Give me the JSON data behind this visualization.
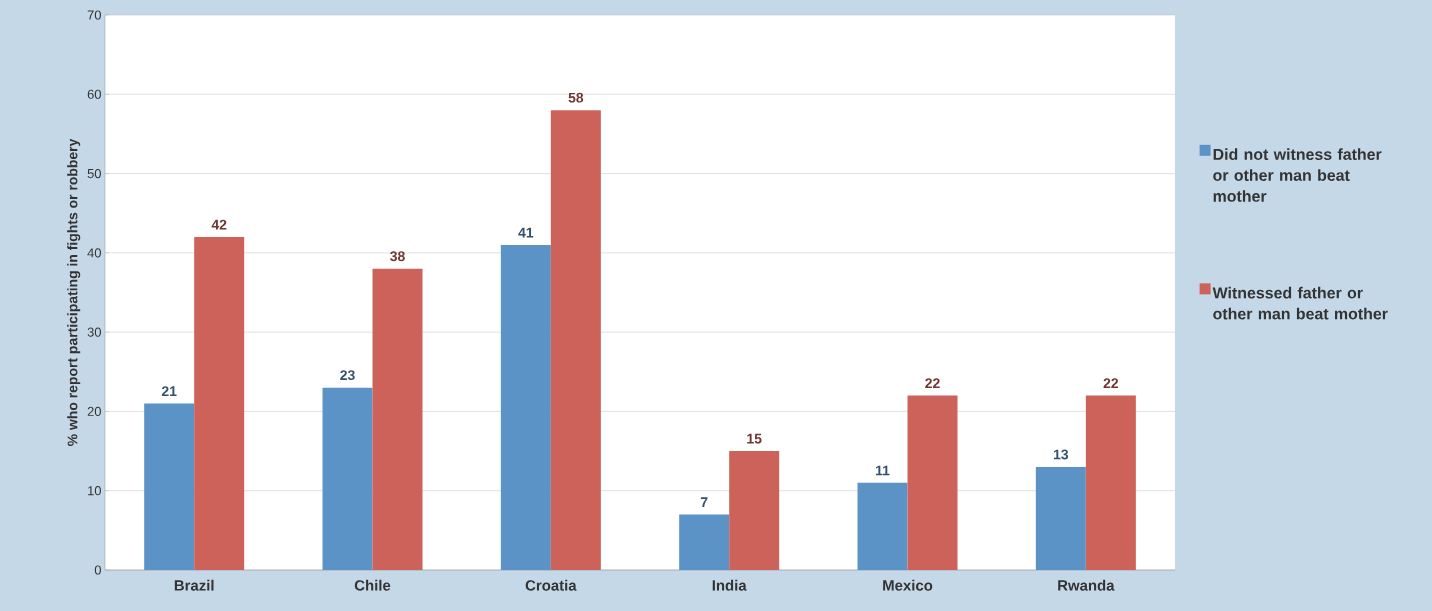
{
  "chart_data": {
    "type": "bar",
    "ylabel": "% who report participating in fights or robbery",
    "categories": [
      "Brazil",
      "Chile",
      "Croatia",
      "India",
      "Mexico",
      "Rwanda"
    ],
    "series": [
      {
        "name": "Did not witness father or other man beat mother",
        "color": "#5b93c7",
        "values": [
          21,
          23,
          41,
          7,
          11,
          13
        ]
      },
      {
        "name": "Witnessed father or other man beat mother",
        "color": "#cc625a",
        "values": [
          42,
          38,
          58,
          15,
          22,
          22
        ]
      }
    ],
    "ylim": [
      0,
      70
    ],
    "yticks": [
      0,
      10,
      20,
      30,
      40,
      50,
      60,
      70
    ],
    "grid": "y",
    "legend": "right",
    "data_labels": true
  }
}
